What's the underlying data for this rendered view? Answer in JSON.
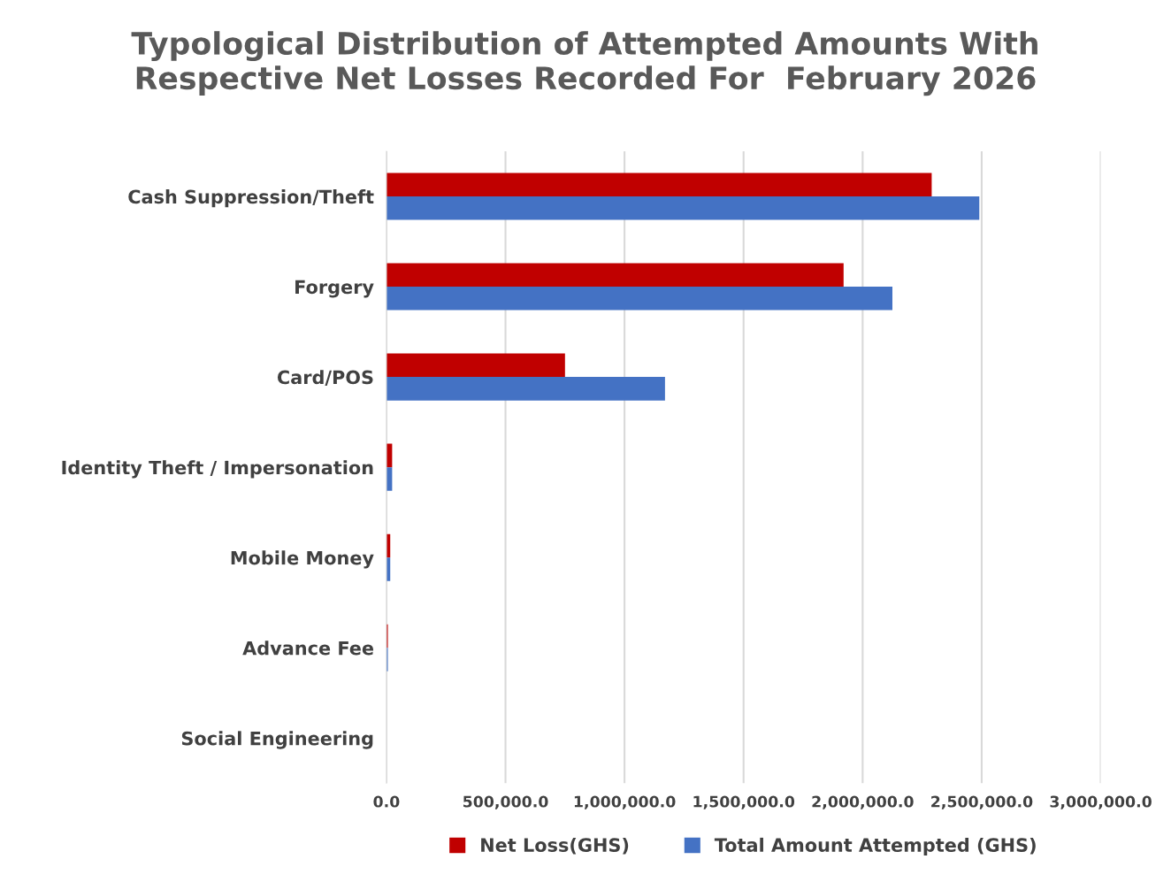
{
  "chart_data": {
    "type": "bar",
    "orientation": "horizontal",
    "title": "Typological Distribution of Attempted Amounts With\nRespective Net Losses Recorded For  February 2026",
    "categories": [
      "Cash Suppression/Theft",
      "Forgery",
      "Card/POS",
      "Identity Theft / Impersonation",
      "Mobile Money",
      "Advance Fee",
      "Social Engineering"
    ],
    "series": [
      {
        "name": "Net Loss(GHS)",
        "color": "#c00000",
        "values": [
          2290000,
          1920000,
          750000,
          24000,
          16000,
          6000,
          null
        ]
      },
      {
        "name": "Total Amount Attempted (GHS)",
        "color": "#4472c4",
        "values": [
          2490000,
          2125000,
          1170000,
          24000,
          16000,
          6000,
          null
        ]
      }
    ],
    "xlim": [
      0,
      3000000
    ],
    "xticks": [
      {
        "value": 0,
        "label": "0.0"
      },
      {
        "value": 500000,
        "label": "500,000.0"
      },
      {
        "value": 1000000,
        "label": "1,000,000.0"
      },
      {
        "value": 1500000,
        "label": "1,500,000.0"
      },
      {
        "value": 2000000,
        "label": "2,000,000.0"
      },
      {
        "value": 2500000,
        "label": "2,500,000.0"
      },
      {
        "value": 3000000,
        "label": "3,000,000.0"
      }
    ],
    "grid": "x",
    "legend": "bottom"
  }
}
